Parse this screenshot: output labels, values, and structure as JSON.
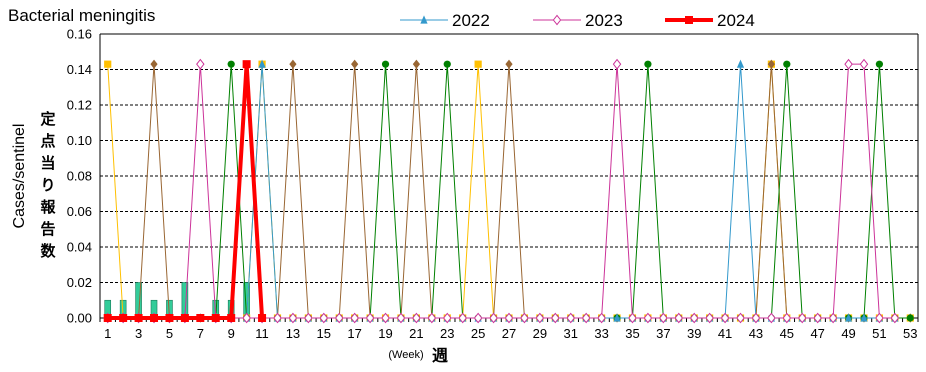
{
  "chart_data": {
    "type": "line",
    "title": "Bacterial meningitis",
    "ylabel": "Cases/sentinel",
    "ylabel_jp": "定点当り報告数",
    "xlabel_en": "(Week)",
    "xlabel_jp": "週",
    "ylim": [
      0,
      0.16
    ],
    "yticks": [
      "0.00",
      "0.02",
      "0.04",
      "0.06",
      "0.08",
      "0.10",
      "0.12",
      "0.14",
      "0.16"
    ],
    "xlim": [
      1,
      53
    ],
    "xticks": [
      "1",
      "3",
      "5",
      "7",
      "9",
      "11",
      "13",
      "15",
      "17",
      "19",
      "21",
      "23",
      "25",
      "27",
      "29",
      "31",
      "33",
      "35",
      "37",
      "39",
      "41",
      "43",
      "45",
      "47",
      "49",
      "51",
      "53"
    ],
    "grid": "horizontal dashed",
    "legend": "top-center",
    "bars": {
      "color": "#33cc99",
      "x": [
        1,
        2,
        3,
        4,
        5,
        6,
        7,
        8,
        9,
        10,
        11
      ],
      "values": [
        0.01,
        0.01,
        0.02,
        0.01,
        0.01,
        0.02,
        0,
        0.01,
        0.01,
        0.02,
        0
      ]
    },
    "background_series": [
      {
        "color": "#ffc000",
        "marker": "square",
        "values": [
          0.143,
          0,
          0,
          0,
          0,
          0,
          0,
          0,
          0,
          0,
          0.143,
          0,
          0,
          0,
          0,
          0,
          0,
          0,
          0,
          0,
          0,
          0,
          0,
          0,
          0.143,
          0,
          0,
          0,
          0,
          0,
          0,
          0,
          0,
          0,
          0,
          0,
          0,
          0,
          0,
          0,
          0,
          0,
          0,
          0.143,
          0,
          0,
          0,
          0,
          0,
          0,
          0,
          0,
          0
        ]
      },
      {
        "color": "#996633",
        "marker": "diamond",
        "values": [
          0,
          0,
          0,
          0.143,
          0,
          0,
          0,
          0,
          0,
          0,
          0,
          0,
          0.143,
          0,
          0,
          0,
          0.143,
          0,
          0,
          0,
          0.143,
          0,
          0,
          0,
          0,
          0,
          0.143,
          0,
          0,
          0,
          0,
          0,
          0,
          0,
          0,
          0,
          0,
          0,
          0,
          0,
          0,
          0,
          0,
          0.143,
          0,
          0,
          0,
          0,
          0,
          0,
          0,
          0,
          0
        ]
      },
      {
        "color": "#008000",
        "marker": "circle",
        "values": [
          0,
          0,
          0,
          0,
          0,
          0,
          0,
          0,
          0.143,
          0,
          0,
          0,
          0,
          0,
          0,
          0,
          0,
          0,
          0.143,
          0,
          0,
          0,
          0.143,
          0,
          0,
          0,
          0,
          0,
          0,
          0,
          0,
          0,
          0,
          0,
          0,
          0.143,
          0,
          0,
          0,
          0,
          0,
          0,
          0,
          0,
          0.143,
          0,
          0,
          0,
          0,
          0,
          0.143,
          0,
          0
        ]
      }
    ],
    "series": [
      {
        "name": "2022",
        "color": "#3399cc",
        "marker": "triangle",
        "values": [
          0,
          0,
          0,
          0,
          0,
          0,
          0,
          0,
          0,
          0,
          0.143,
          0,
          0,
          0,
          0,
          0,
          0,
          0,
          0,
          0,
          0,
          0,
          0,
          0,
          0,
          0,
          0,
          0,
          0,
          0,
          0,
          0,
          0,
          0,
          0,
          0,
          0,
          0,
          0,
          0,
          0,
          0.143,
          0,
          0,
          0,
          0,
          0,
          0,
          0,
          0,
          0,
          0
        ]
      },
      {
        "name": "2023",
        "color": "#cc3399",
        "marker": "diamond-open",
        "values": [
          0,
          0,
          0,
          0,
          0,
          0,
          0.143,
          0,
          0,
          0,
          0,
          0,
          0,
          0,
          0,
          0,
          0,
          0,
          0,
          0,
          0,
          0,
          0,
          0,
          0,
          0,
          0,
          0,
          0,
          0,
          0,
          0,
          0,
          0.143,
          0,
          0,
          0,
          0,
          0,
          0,
          0,
          0,
          0,
          0,
          0,
          0,
          0,
          0,
          0.143,
          0.143,
          0,
          0
        ]
      },
      {
        "name": "2024",
        "color": "#ff0000",
        "marker": "square",
        "values": [
          0,
          0,
          0,
          0,
          0,
          0,
          0,
          0,
          0,
          0.143,
          0
        ]
      }
    ]
  }
}
